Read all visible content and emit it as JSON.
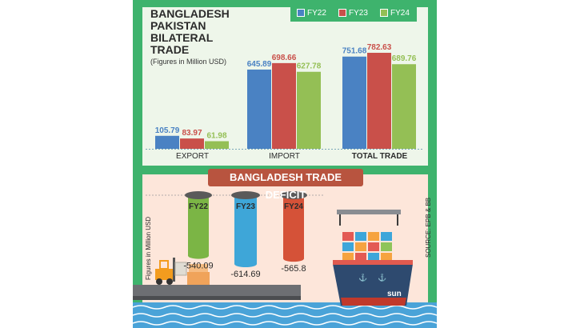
{
  "chart_data": [
    {
      "type": "bar",
      "title": "BANGLADESH PAKISTAN BILATERAL TRADE",
      "title_lines": [
        "BANGLADESH",
        "PAKISTAN",
        "BILATERAL",
        "TRADE"
      ],
      "subtitle": "(Figures in Million USD)",
      "categories": [
        "EXPORT",
        "IMPORT",
        "TOTAL TRADE"
      ],
      "series": [
        {
          "name": "FY22",
          "color": "#4a82c3",
          "values": [
            105.79,
            645.89,
            751.68
          ]
        },
        {
          "name": "FY23",
          "color": "#c9504a",
          "values": [
            83.97,
            698.66,
            782.63
          ]
        },
        {
          "name": "FY24",
          "color": "#94bf55",
          "values": [
            61.98,
            627.78,
            689.76
          ]
        }
      ],
      "ylim": [
        0,
        782.63
      ],
      "legend": "top-right",
      "grid": false
    },
    {
      "type": "bar",
      "title": "BANGLADESH TRADE DEFICIT",
      "ylabel": "Figures in Million USD",
      "categories": [
        "FY22",
        "FY23",
        "FY24"
      ],
      "values": [
        -540.09,
        -614.69,
        -565.8
      ],
      "value_labels": [
        "-540.09",
        "-614.69",
        "-565.8"
      ],
      "colors": [
        "#7bb545",
        "#3ea6d8",
        "#d55238"
      ]
    }
  ],
  "source": "SOURCE: EPB & BB",
  "ship_label": "sun",
  "colors": {
    "frame": "#3eb36d",
    "top_panel": "#eef6ea",
    "bottom_panel": "#fde6da",
    "banner": "#b8543f",
    "water": "#4aa3d8"
  }
}
